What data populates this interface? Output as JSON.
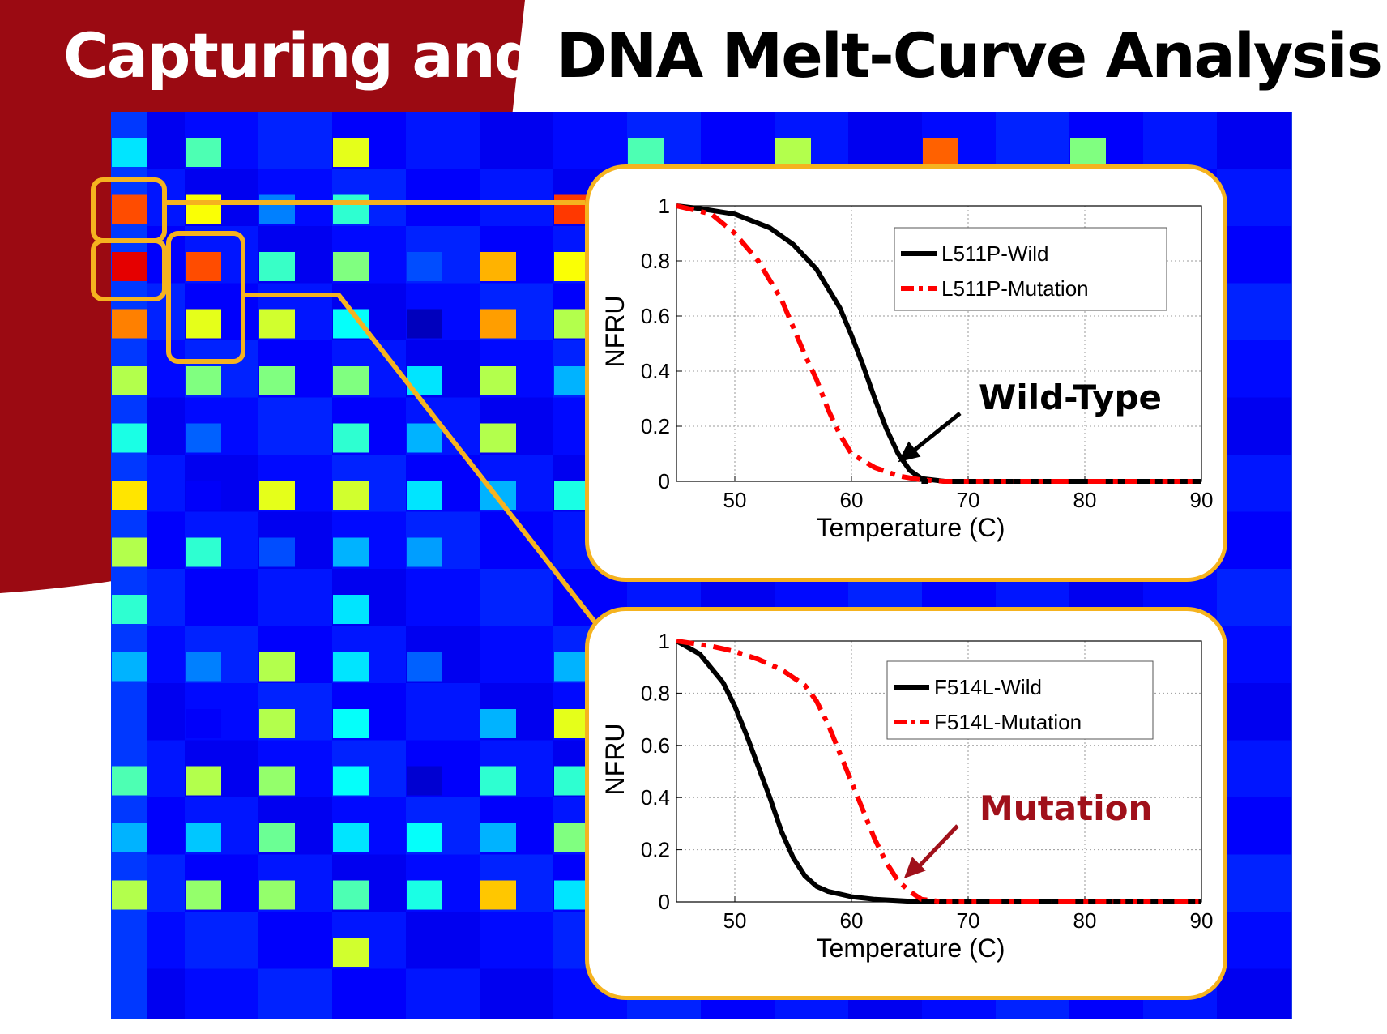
{
  "title": {
    "part1": "Capturing and ",
    "part2": "DNA Melt-Curve Analysis"
  },
  "colors": {
    "brand_red": "#9b0a12",
    "inset_border": "#f5b31f",
    "wild_line": "#000000",
    "mutation_line": "#ff0000",
    "mutation_callout": "#a0101a",
    "heatmap_background": "#1a3ae6"
  },
  "heatmap": {
    "colormap": "jet",
    "highlight_boxes": 3,
    "spots": [
      {
        "col": 0,
        "row": 0,
        "v": 0.35
      },
      {
        "col": 1,
        "row": 0,
        "v": 0.45
      },
      {
        "col": 3,
        "row": 0,
        "v": 0.6
      },
      {
        "col": 7,
        "row": 0,
        "v": 0.45
      },
      {
        "col": 9,
        "row": 0,
        "v": 0.55
      },
      {
        "col": 11,
        "row": 0,
        "v": 0.78
      },
      {
        "col": 13,
        "row": 0,
        "v": 0.5
      },
      {
        "col": 0,
        "row": 1,
        "v": 0.8
      },
      {
        "col": 1,
        "row": 1,
        "v": 0.62
      },
      {
        "col": 2,
        "row": 1,
        "v": 0.25
      },
      {
        "col": 3,
        "row": 1,
        "v": 0.42
      },
      {
        "col": 6,
        "row": 1,
        "v": 0.82
      },
      {
        "col": 0,
        "row": 2,
        "v": 0.9
      },
      {
        "col": 1,
        "row": 2,
        "v": 0.8
      },
      {
        "col": 2,
        "row": 2,
        "v": 0.43
      },
      {
        "col": 3,
        "row": 2,
        "v": 0.5
      },
      {
        "col": 4,
        "row": 2,
        "v": 0.2
      },
      {
        "col": 5,
        "row": 2,
        "v": 0.7
      },
      {
        "col": 6,
        "row": 2,
        "v": 0.62
      },
      {
        "col": 0,
        "row": 3,
        "v": 0.75
      },
      {
        "col": 1,
        "row": 3,
        "v": 0.6
      },
      {
        "col": 2,
        "row": 3,
        "v": 0.58
      },
      {
        "col": 3,
        "row": 3,
        "v": 0.38
      },
      {
        "col": 4,
        "row": 3,
        "v": 0.06
      },
      {
        "col": 5,
        "row": 3,
        "v": 0.72
      },
      {
        "col": 6,
        "row": 3,
        "v": 0.55
      },
      {
        "col": 0,
        "row": 4,
        "v": 0.55
      },
      {
        "col": 1,
        "row": 4,
        "v": 0.5
      },
      {
        "col": 2,
        "row": 4,
        "v": 0.5
      },
      {
        "col": 3,
        "row": 4,
        "v": 0.5
      },
      {
        "col": 4,
        "row": 4,
        "v": 0.35
      },
      {
        "col": 5,
        "row": 4,
        "v": 0.55
      },
      {
        "col": 6,
        "row": 4,
        "v": 0.3
      },
      {
        "col": 0,
        "row": 5,
        "v": 0.4
      },
      {
        "col": 1,
        "row": 5,
        "v": 0.22
      },
      {
        "col": 3,
        "row": 5,
        "v": 0.42
      },
      {
        "col": 4,
        "row": 5,
        "v": 0.3
      },
      {
        "col": 5,
        "row": 5,
        "v": 0.55
      },
      {
        "col": 0,
        "row": 6,
        "v": 0.65
      },
      {
        "col": 1,
        "row": 6,
        "v": 0.12
      },
      {
        "col": 2,
        "row": 6,
        "v": 0.6
      },
      {
        "col": 3,
        "row": 6,
        "v": 0.58
      },
      {
        "col": 4,
        "row": 6,
        "v": 0.35
      },
      {
        "col": 5,
        "row": 6,
        "v": 0.3
      },
      {
        "col": 6,
        "row": 6,
        "v": 0.4
      },
      {
        "col": 0,
        "row": 7,
        "v": 0.55
      },
      {
        "col": 1,
        "row": 7,
        "v": 0.42
      },
      {
        "col": 2,
        "row": 7,
        "v": 0.2
      },
      {
        "col": 3,
        "row": 7,
        "v": 0.3
      },
      {
        "col": 4,
        "row": 7,
        "v": 0.28
      },
      {
        "col": 0,
        "row": 8,
        "v": 0.42
      },
      {
        "col": 3,
        "row": 8,
        "v": 0.35
      },
      {
        "col": 0,
        "row": 9,
        "v": 0.3
      },
      {
        "col": 1,
        "row": 9,
        "v": 0.25
      },
      {
        "col": 2,
        "row": 9,
        "v": 0.55
      },
      {
        "col": 3,
        "row": 9,
        "v": 0.35
      },
      {
        "col": 4,
        "row": 9,
        "v": 0.22
      },
      {
        "col": 6,
        "row": 9,
        "v": 0.3
      },
      {
        "col": 1,
        "row": 10,
        "v": 0.12
      },
      {
        "col": 2,
        "row": 10,
        "v": 0.55
      },
      {
        "col": 3,
        "row": 10,
        "v": 0.38
      },
      {
        "col": 5,
        "row": 10,
        "v": 0.3
      },
      {
        "col": 6,
        "row": 10,
        "v": 0.6
      },
      {
        "col": 0,
        "row": 11,
        "v": 0.45
      },
      {
        "col": 1,
        "row": 11,
        "v": 0.55
      },
      {
        "col": 2,
        "row": 11,
        "v": 0.52
      },
      {
        "col": 3,
        "row": 11,
        "v": 0.38
      },
      {
        "col": 4,
        "row": 11,
        "v": 0.08
      },
      {
        "col": 5,
        "row": 11,
        "v": 0.42
      },
      {
        "col": 6,
        "row": 11,
        "v": 0.42
      },
      {
        "col": 0,
        "row": 12,
        "v": 0.3
      },
      {
        "col": 1,
        "row": 12,
        "v": 0.32
      },
      {
        "col": 2,
        "row": 12,
        "v": 0.48
      },
      {
        "col": 3,
        "row": 12,
        "v": 0.35
      },
      {
        "col": 4,
        "row": 12,
        "v": 0.38
      },
      {
        "col": 5,
        "row": 12,
        "v": 0.3
      },
      {
        "col": 6,
        "row": 12,
        "v": 0.5
      },
      {
        "col": 0,
        "row": 13,
        "v": 0.55
      },
      {
        "col": 1,
        "row": 13,
        "v": 0.52
      },
      {
        "col": 2,
        "row": 13,
        "v": 0.52
      },
      {
        "col": 3,
        "row": 13,
        "v": 0.45
      },
      {
        "col": 4,
        "row": 13,
        "v": 0.4
      },
      {
        "col": 5,
        "row": 13,
        "v": 0.68
      },
      {
        "col": 6,
        "row": 13,
        "v": 0.35
      },
      {
        "col": 3,
        "row": 14,
        "v": 0.58
      }
    ]
  },
  "chart_data": [
    {
      "type": "line",
      "xlabel": "Temperature (C)",
      "ylabel": "NFRU",
      "xlim": [
        45,
        90
      ],
      "ylim": [
        0,
        1
      ],
      "xticks": [
        50,
        60,
        70,
        80,
        90
      ],
      "yticks": [
        0,
        0.2,
        0.4,
        0.6,
        0.8,
        1
      ],
      "ytick_labels": [
        "0",
        "0.2",
        "0.4",
        "0.6",
        "0.8",
        "1"
      ],
      "grid": true,
      "legend": "top-right",
      "series": [
        {
          "name": "L511P-Wild",
          "style": "solid",
          "x": [
            45,
            47,
            50,
            53,
            55,
            57,
            59,
            60,
            61,
            62,
            63,
            64,
            65,
            66,
            68,
            70,
            75,
            80,
            85,
            90
          ],
          "values": [
            1.0,
            0.99,
            0.97,
            0.92,
            0.86,
            0.77,
            0.63,
            0.53,
            0.42,
            0.3,
            0.19,
            0.1,
            0.04,
            0.01,
            0,
            0,
            0,
            0,
            0,
            0
          ]
        },
        {
          "name": "L511P-Mutation",
          "style": "dash-dot",
          "x": [
            45,
            48,
            50,
            52,
            54,
            55,
            56,
            57,
            58,
            59,
            60,
            62,
            64,
            66,
            68,
            70,
            75,
            80,
            85,
            90
          ],
          "values": [
            1.0,
            0.97,
            0.9,
            0.8,
            0.66,
            0.56,
            0.46,
            0.37,
            0.26,
            0.17,
            0.1,
            0.05,
            0.02,
            0.005,
            0,
            0,
            0,
            0,
            0,
            0
          ]
        }
      ],
      "annotation": {
        "text": "Wild-Type",
        "arrow_to": {
          "x": 64,
          "y": 0.07
        }
      }
    },
    {
      "type": "line",
      "xlabel": "Temperature (C)",
      "ylabel": "NFRU",
      "xlim": [
        45,
        90
      ],
      "ylim": [
        0,
        1
      ],
      "xticks": [
        50,
        60,
        70,
        80,
        90
      ],
      "yticks": [
        0,
        0.2,
        0.4,
        0.6,
        0.8,
        1
      ],
      "ytick_labels": [
        "0",
        "0.2",
        "0.4",
        "0.6",
        "0.8",
        "1"
      ],
      "grid": true,
      "legend": "top-right",
      "series": [
        {
          "name": "F514L-Wild",
          "style": "solid",
          "x": [
            45,
            47,
            49,
            50,
            51,
            52,
            53,
            54,
            55,
            56,
            57,
            58,
            60,
            62,
            64,
            66,
            70,
            80,
            90
          ],
          "values": [
            1.0,
            0.95,
            0.84,
            0.75,
            0.64,
            0.52,
            0.4,
            0.27,
            0.17,
            0.1,
            0.06,
            0.04,
            0.02,
            0.01,
            0.005,
            0,
            0,
            0,
            0
          ],
          "color": "#000000"
        },
        {
          "name": "F514L-Mutation",
          "style": "dash-dot",
          "x": [
            45,
            48,
            50,
            52,
            54,
            56,
            57,
            58,
            59,
            60,
            61,
            62,
            63,
            64,
            65,
            66,
            68,
            70,
            80,
            90
          ],
          "values": [
            1.0,
            0.98,
            0.96,
            0.93,
            0.89,
            0.83,
            0.77,
            0.68,
            0.57,
            0.46,
            0.35,
            0.24,
            0.15,
            0.08,
            0.04,
            0.01,
            0,
            0,
            0,
            0
          ]
        }
      ],
      "annotation": {
        "text": "Mutation",
        "arrow_to": {
          "x": 64.5,
          "y": 0.09
        }
      }
    }
  ]
}
